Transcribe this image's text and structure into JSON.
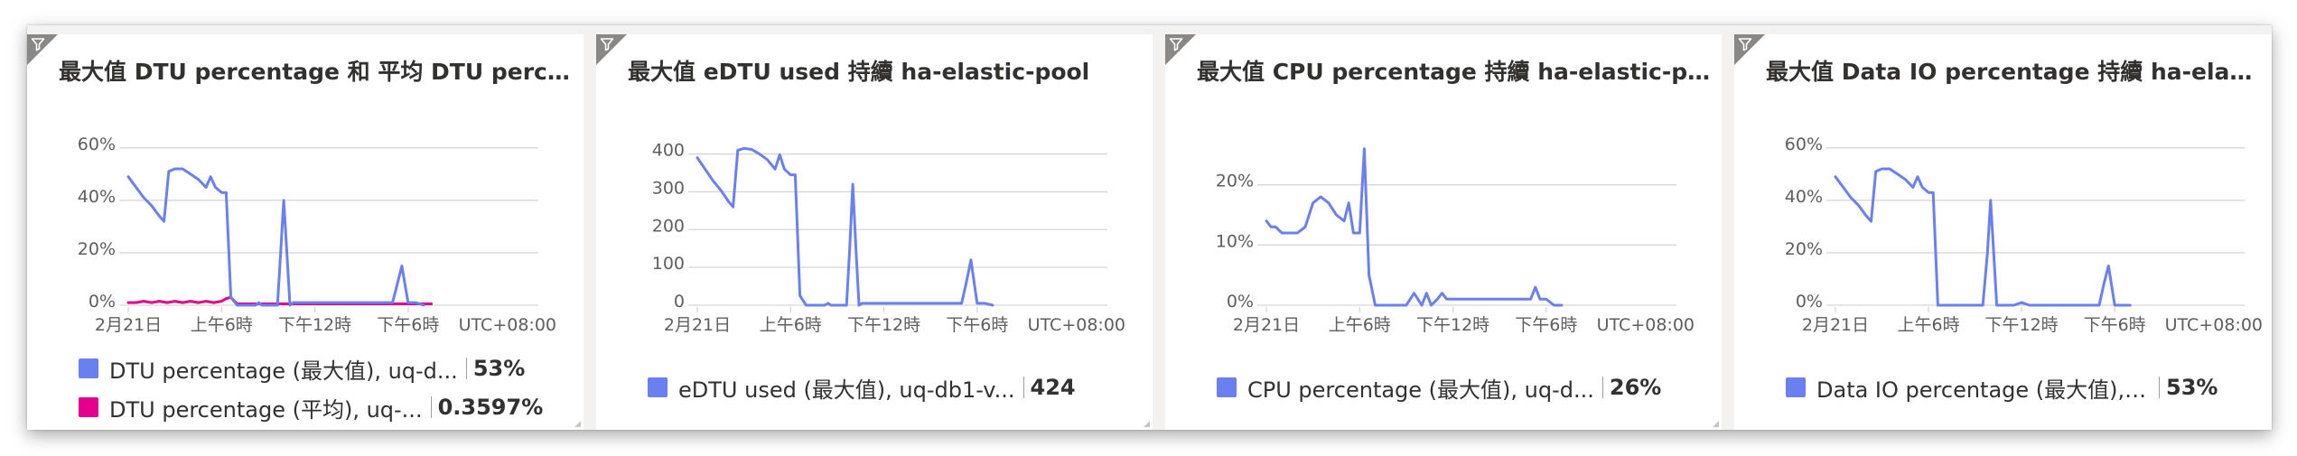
{
  "colors": {
    "blue": "#6b80f0",
    "magenta": "#e3008c",
    "grid": "#d6d6d6",
    "tick": "#605e5c"
  },
  "tiles": [
    {
      "title": "最大值 DTU percentage 和 平均 DTU percen...",
      "legend": [
        {
          "label": "DTU percentage (最大值), uq-d...",
          "value": "53%",
          "color": "#6b80f0"
        },
        {
          "label": "DTU percentage (平均), uq-...",
          "value": "0.3597%",
          "color": "#e3008c"
        }
      ]
    },
    {
      "title": "最大值 eDTU used 持續 ha-elastic-pool",
      "legend": [
        {
          "label": "eDTU used (最大值), uq-db1-v...",
          "value": "424",
          "color": "#6b80f0"
        }
      ]
    },
    {
      "title": "最大值 CPU percentage 持續 ha-elastic-pool",
      "legend": [
        {
          "label": "CPU percentage (最大值), uq-d...",
          "value": "26%",
          "color": "#6b80f0"
        }
      ]
    },
    {
      "title": "最大值 Data IO percentage 持續 ha-elastic-...",
      "legend": [
        {
          "label": "Data IO percentage (最大值), u...",
          "value": "53%",
          "color": "#6b80f0"
        }
      ]
    }
  ],
  "chart_data": [
    {
      "type": "line",
      "title": "最大值 DTU percentage 和 平均 DTU percen...",
      "x_tick_labels": [
        "2月21日",
        "上午6時",
        "下午12時",
        "下午6時"
      ],
      "x_timezone": "UTC+08:00",
      "y_ticks": [
        0,
        20,
        40,
        60
      ],
      "y_tick_labels": [
        "0%",
        "20%",
        "40%",
        "60%"
      ],
      "ylim": [
        0,
        62
      ],
      "xlim": [
        0,
        24
      ],
      "grid": true,
      "series": [
        {
          "name": "DTU percentage (最大值), uq-d...",
          "color": "#6b80f0",
          "x": [
            0,
            0.5,
            1,
            1.5,
            2,
            2.3,
            2.6,
            3,
            3.5,
            4,
            4.5,
            5,
            5.3,
            5.6,
            6,
            6.3,
            6.6,
            7,
            7.3,
            7.6,
            8,
            8.2,
            8.4,
            8.6,
            9,
            9.3,
            9.6,
            9.8,
            10,
            10.2,
            10.4,
            10.6,
            11,
            11.5,
            12,
            12.5,
            13,
            13.5,
            14,
            14.5,
            15,
            15.5,
            16,
            16.5,
            17,
            17.3,
            17.6,
            18,
            18.5,
            19
          ],
          "values": [
            49,
            45,
            41,
            38,
            34,
            32,
            51,
            52,
            52,
            50,
            48,
            45,
            49,
            45,
            43,
            43,
            3,
            0,
            0,
            0,
            0,
            0,
            1,
            0,
            0,
            0,
            0,
            20,
            40,
            20,
            0,
            1,
            1,
            1,
            1,
            1,
            1,
            1,
            1,
            1,
            1,
            1,
            1,
            1,
            1,
            8,
            15,
            1,
            1,
            0
          ]
        },
        {
          "name": "DTU percentage (平均), uq-...",
          "color": "#e3008c",
          "x": [
            0,
            0.5,
            1,
            1.5,
            2,
            2.5,
            3,
            3.5,
            4,
            4.5,
            5,
            5.5,
            6,
            6.3,
            6.6,
            7,
            7.5,
            8,
            8.5,
            9,
            9.5,
            10,
            10.5,
            11,
            11.5,
            12,
            12.5,
            13,
            13.5,
            14,
            14.5,
            15,
            15.5,
            16,
            16.5,
            17,
            17.5,
            18,
            18.5,
            19,
            19.5
          ],
          "values": [
            1,
            1,
            1.5,
            1,
            1.5,
            1,
            1.5,
            1,
            1.5,
            1,
            1.5,
            1,
            1.5,
            2.5,
            3,
            0.5,
            0.5,
            0.5,
            0.5,
            0.5,
            0.5,
            0.5,
            0.5,
            0.5,
            0.5,
            0.5,
            0.5,
            0.5,
            0.5,
            0.5,
            0.5,
            0.5,
            0.5,
            0.5,
            0.5,
            0.5,
            0.5,
            0.5,
            0.5,
            0.5,
            0.5
          ]
        }
      ]
    },
    {
      "type": "line",
      "title": "最大值 eDTU used 持續 ha-elastic-pool",
      "x_tick_labels": [
        "2月21日",
        "上午6時",
        "下午12時",
        "下午6時"
      ],
      "x_timezone": "UTC+08:00",
      "y_ticks": [
        0,
        100,
        200,
        300,
        400
      ],
      "y_tick_labels": [
        "0",
        "100",
        "200",
        "300",
        "400"
      ],
      "ylim": [
        0,
        430
      ],
      "xlim": [
        0,
        24
      ],
      "grid": true,
      "series": [
        {
          "name": "eDTU used (最大值), uq-db1-v...",
          "color": "#6b80f0",
          "x": [
            0,
            0.5,
            1,
            1.5,
            2,
            2.3,
            2.6,
            3,
            3.5,
            4,
            4.5,
            5,
            5.3,
            5.6,
            6,
            6.3,
            6.6,
            7,
            7.3,
            7.6,
            8,
            8.2,
            8.4,
            8.6,
            9,
            9.3,
            9.6,
            9.8,
            10,
            10.2,
            10.4,
            10.6,
            11,
            11.5,
            12,
            12.5,
            13,
            13.5,
            14,
            14.5,
            15,
            15.5,
            16,
            16.5,
            17,
            17.3,
            17.6,
            18,
            18.5,
            19
          ],
          "values": [
            390,
            360,
            330,
            305,
            275,
            260,
            410,
            415,
            412,
            400,
            385,
            360,
            398,
            360,
            345,
            345,
            25,
            0,
            0,
            0,
            0,
            0,
            5,
            0,
            0,
            0,
            0,
            150,
            320,
            150,
            0,
            5,
            5,
            5,
            5,
            5,
            5,
            5,
            5,
            5,
            5,
            5,
            5,
            5,
            5,
            60,
            120,
            5,
            5,
            0
          ]
        }
      ]
    },
    {
      "type": "line",
      "title": "最大值 CPU percentage 持續 ha-elastic-pool",
      "x_tick_labels": [
        "2月21日",
        "上午6時",
        "下午12時",
        "下午6時"
      ],
      "x_timezone": "UTC+08:00",
      "y_ticks": [
        0,
        10,
        20
      ],
      "y_tick_labels": [
        "0%",
        "10%",
        "20%"
      ],
      "ylim": [
        0,
        27
      ],
      "xlim": [
        0,
        24
      ],
      "grid": true,
      "series": [
        {
          "name": "CPU percentage (最大值), uq-d...",
          "color": "#6b80f0",
          "x": [
            0,
            0.3,
            0.6,
            1,
            1.5,
            2,
            2.5,
            3,
            3.5,
            4,
            4.5,
            5,
            5.3,
            5.6,
            6,
            6.3,
            6.6,
            7,
            7.3,
            7.6,
            8,
            8.5,
            9,
            9.5,
            10,
            10.3,
            10.6,
            11,
            11.3,
            11.6,
            12,
            12.5,
            13,
            13.5,
            14,
            14.5,
            15,
            15.5,
            16,
            16.5,
            17,
            17.3,
            17.6,
            18,
            18.5,
            19
          ],
          "values": [
            14,
            13,
            13,
            12,
            12,
            12,
            13,
            17,
            18,
            17,
            15,
            14,
            17,
            12,
            12,
            26,
            5,
            0,
            0,
            0,
            0,
            0,
            0,
            2,
            0,
            2,
            0,
            1,
            2,
            1,
            1,
            1,
            1,
            1,
            1,
            1,
            1,
            1,
            1,
            1,
            1,
            3,
            1,
            1,
            0,
            0
          ]
        }
      ]
    },
    {
      "type": "line",
      "title": "最大值 Data IO percentage 持續 ha-elastic-...",
      "x_tick_labels": [
        "2月21日",
        "上午6時",
        "下午12時",
        "下午6時"
      ],
      "x_timezone": "UTC+08:00",
      "y_ticks": [
        0,
        20,
        40,
        60
      ],
      "y_tick_labels": [
        "0%",
        "20%",
        "40%",
        "60%"
      ],
      "ylim": [
        0,
        62
      ],
      "xlim": [
        0,
        24
      ],
      "grid": true,
      "series": [
        {
          "name": "Data IO percentage (最大值), u...",
          "color": "#6b80f0",
          "x": [
            0,
            0.5,
            1,
            1.5,
            2,
            2.3,
            2.6,
            3,
            3.5,
            4,
            4.5,
            5,
            5.3,
            5.6,
            6,
            6.3,
            6.6,
            7,
            7.5,
            8,
            8.5,
            9,
            9.5,
            9.8,
            10,
            10.2,
            10.4,
            10.6,
            11,
            11.5,
            12,
            12.5,
            13,
            13.5,
            14,
            14.5,
            15,
            15.5,
            16,
            16.5,
            17,
            17.3,
            17.6,
            18,
            18.5,
            19
          ],
          "values": [
            49,
            45,
            41,
            38,
            34,
            32,
            51,
            52,
            52,
            50,
            48,
            45,
            49,
            45,
            43,
            43,
            0,
            0,
            0,
            0,
            0,
            0,
            0,
            20,
            40,
            20,
            0,
            0,
            0,
            0,
            1,
            0,
            0,
            0,
            0,
            0,
            0,
            0,
            0,
            0,
            0,
            8,
            15,
            0,
            0,
            0
          ]
        }
      ]
    }
  ]
}
